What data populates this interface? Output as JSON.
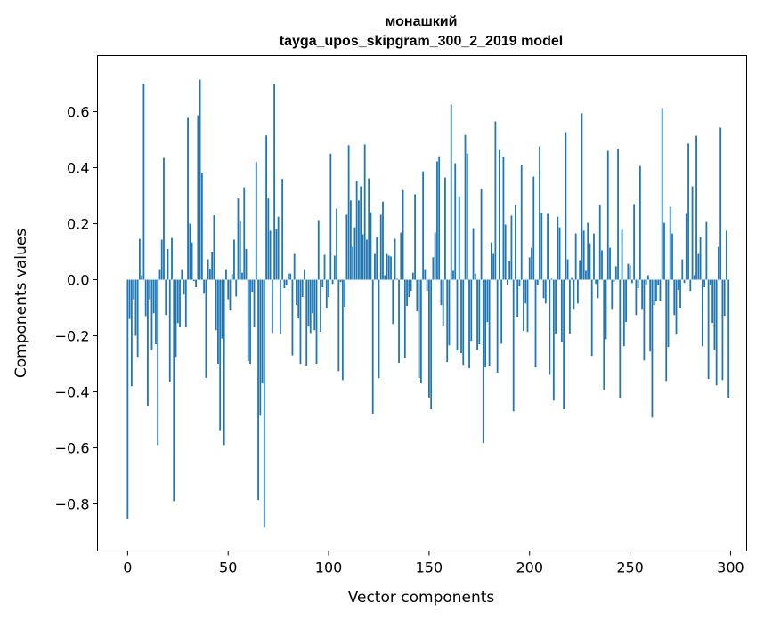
{
  "chart_data": {
    "type": "bar",
    "title_line1": "монашкий",
    "title_line2": "tayga_upos_skipgram_300_2_2019 model",
    "xlabel": "Vector components",
    "ylabel": "Components values",
    "xlim": [
      -15,
      308
    ],
    "ylim": [
      -0.968,
      0.8
    ],
    "xticks": [
      0,
      50,
      100,
      150,
      200,
      250,
      300
    ],
    "xtick_labels": [
      "0",
      "50",
      "100",
      "150",
      "200",
      "250",
      "300"
    ],
    "yticks": [
      -0.8,
      -0.6,
      -0.4,
      -0.2,
      0.0,
      0.2,
      0.4,
      0.6
    ],
    "ytick_labels": [
      "−0.8",
      "−0.6",
      "−0.4",
      "−0.2",
      "0.0",
      "0.2",
      "0.4",
      "0.6"
    ],
    "grid": false,
    "bar_color": "#1f77b4",
    "values": [
      -0.855,
      -0.14,
      -0.38,
      -0.07,
      -0.2,
      -0.275,
      0.146,
      0.016,
      0.7,
      -0.13,
      -0.45,
      -0.07,
      -0.25,
      -0.12,
      -0.23,
      -0.59,
      0.035,
      0.143,
      0.435,
      -0.126,
      0.11,
      -0.364,
      0.149,
      -0.79,
      -0.275,
      -0.155,
      -0.17,
      0.035,
      -0.053,
      -0.17,
      0.578,
      0.2,
      0.133,
      -0.005,
      -0.027,
      0.587,
      0.714,
      0.38,
      -0.05,
      -0.35,
      0.073,
      0.04,
      0.1,
      0.23,
      -0.18,
      -0.3,
      -0.54,
      -0.21,
      -0.59,
      0.035,
      -0.07,
      -0.11,
      0.02,
      0.143,
      -0.06,
      0.29,
      0.21,
      0.025,
      0.33,
      0.11,
      -0.29,
      -0.3,
      -0.043,
      -0.17,
      0.42,
      -0.786,
      -0.485,
      -0.37,
      -0.885,
      0.515,
      0.29,
      0.175,
      -0.19,
      0.7,
      0.18,
      0.225,
      -0.195,
      0.36,
      -0.03,
      -0.02,
      0.022,
      0.022,
      -0.27,
      0.092,
      -0.09,
      -0.135,
      -0.3,
      -0.062,
      0.035,
      -0.307,
      -0.167,
      -0.19,
      -0.12,
      -0.18,
      -0.3,
      0.213,
      -0.186,
      -0.027,
      0.089,
      -0.1,
      -0.062,
      0.45,
      -0.015,
      0.086,
      0.254,
      -0.326,
      -0.008,
      -0.358,
      -0.097,
      0.232,
      0.48,
      0.283,
      0.117,
      0.187,
      0.352,
      0.283,
      0.333,
      0.162,
      0.483,
      0.143,
      0.362,
      0.241,
      -0.478,
      0.092,
      0.152,
      -0.351,
      0.232,
      0.279,
      0.016,
      0.092,
      0.086,
      0.083,
      -0.158,
      0.146,
      0.003,
      -0.297,
      0.168,
      0.32,
      -0.28,
      -0.094,
      -0.062,
      -0.04,
      0.025,
      0.305,
      -0.113,
      -0.351,
      -0.37,
      0.387,
      0.035,
      -0.04,
      -0.42,
      -0.462,
      0.08,
      0.168,
      0.422,
      0.441,
      -0.091,
      -0.164,
      0.365,
      -0.294,
      -0.234,
      0.625,
      0.032,
      0.416,
      -0.253,
      0.298,
      -0.262,
      -0.304,
      0.517,
      0.45,
      -0.316,
      -0.218,
      0.184,
      0.022,
      -0.25,
      -0.23,
      0.324,
      -0.583,
      -0.313,
      -0.151,
      -0.307,
      0.133,
      0.092,
      0.565,
      -0.332,
      0.463,
      -0.228,
      0.438,
      0.197,
      -0.018,
      0.067,
      0.229,
      -0.469,
      0.267,
      -0.132,
      -0.024,
      0.41,
      -0.183,
      -0.085,
      -0.186,
      0.08,
      0.114,
      0.368,
      -0.313,
      -0.018,
      0.476,
      0.238,
      -0.066,
      -0.085,
      0.235,
      -0.339,
      0.003,
      -0.431,
      -0.193,
      0.225,
      0.187,
      -0.221,
      -0.462,
      0.527,
      0.073,
      -0.193,
      0.006,
      -0.104,
      0.165,
      -0.085,
      0.07,
      0.594,
      0.175,
      0.032,
      0.203,
      0.13,
      -0.272,
      0.165,
      -0.015,
      -0.066,
      0.267,
      0.105,
      -0.393,
      -0.212,
      0.46,
      0.114,
      -0.104,
      -0.008,
      0.048,
      0.467,
      -0.424,
      0.178,
      -0.237,
      -0.151,
      0.057,
      0.051,
      -0.012,
      0.27,
      -0.126,
      -0.03,
      0.406,
      -0.104,
      -0.288,
      -0.018,
      0.016,
      -0.256,
      -0.491,
      -0.091,
      -0.075,
      -0.018,
      -0.078,
      0.613,
      0.203,
      -0.361,
      -0.24,
      0.26,
      0.165,
      -0.126,
      -0.196,
      -0.037,
      -0.1,
      0.073,
      -0.012,
      0.235,
      0.486,
      -0.04,
      0.333,
      0.016,
      0.514,
      0.092,
      0.152,
      -0.237,
      -0.027,
      0.206,
      -0.354,
      -0.018,
      -0.154,
      -0.25,
      -0.377,
      0.117,
      0.543,
      -0.358,
      -0.129,
      0.175,
      -0.421
    ]
  }
}
